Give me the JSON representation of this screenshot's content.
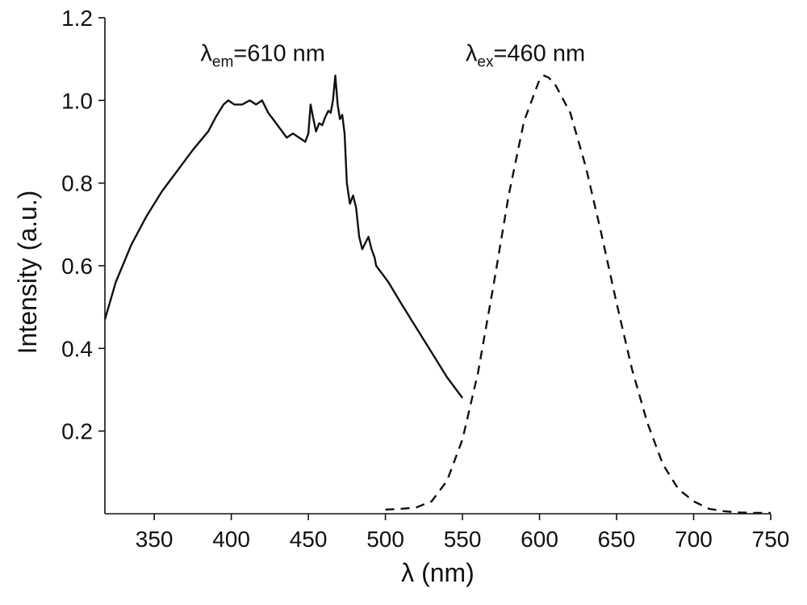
{
  "chart_data": {
    "type": "line",
    "xlabel": "λ  (nm)",
    "ylabel": "Intensity (a.u.)",
    "xlim": [
      318,
      750
    ],
    "ylim": [
      0,
      1.2
    ],
    "x_ticks": [
      350,
      400,
      450,
      500,
      550,
      600,
      650,
      700,
      750
    ],
    "y_ticks": [
      0.2,
      0.4,
      0.6,
      0.8,
      1.0,
      1.2
    ],
    "y_tick_labels": [
      "0.2",
      "0.4",
      "0.6",
      "0.8",
      "1.0",
      "1.2"
    ],
    "grid": false,
    "legend": "none",
    "annotations": [
      {
        "symbol": "λ",
        "subscript": "em",
        "text": "=610 nm",
        "x": 380,
        "y": 1.095
      },
      {
        "symbol": "λ",
        "subscript": "ex",
        "text": "=460 nm",
        "x": 552,
        "y": 1.095
      }
    ],
    "series": [
      {
        "style": "solid",
        "color": "#111111",
        "x": [
          318,
          325,
          335,
          345,
          355,
          365,
          375,
          385,
          390,
          395,
          398,
          402,
          407,
          412,
          416,
          420,
          424,
          428,
          432,
          436,
          440,
          444,
          448,
          450,
          451.5,
          453,
          455,
          457,
          459,
          461,
          463,
          464.5,
          466,
          467.5,
          469,
          470.5,
          472,
          473.5,
          475,
          477,
          479,
          481,
          483,
          485,
          487,
          489,
          491,
          493,
          494,
          496,
          498,
          502,
          510,
          520,
          530,
          540,
          550
        ],
        "y": [
          0.47,
          0.56,
          0.65,
          0.72,
          0.78,
          0.83,
          0.88,
          0.925,
          0.96,
          0.99,
          1.0,
          0.99,
          0.99,
          1.0,
          0.99,
          1.0,
          0.97,
          0.95,
          0.93,
          0.91,
          0.92,
          0.91,
          0.9,
          0.92,
          0.99,
          0.96,
          0.925,
          0.945,
          0.94,
          0.96,
          0.975,
          0.97,
          1.0,
          1.06,
          0.99,
          0.955,
          0.965,
          0.92,
          0.8,
          0.75,
          0.77,
          0.74,
          0.67,
          0.64,
          0.655,
          0.67,
          0.64,
          0.62,
          0.6,
          0.59,
          0.58,
          0.56,
          0.51,
          0.45,
          0.39,
          0.33,
          0.28
        ]
      },
      {
        "style": "dashed",
        "color": "#111111",
        "x": [
          500,
          510,
          520,
          530,
          540,
          550,
          560,
          570,
          580,
          590,
          600,
          603,
          606,
          610,
          620,
          630,
          640,
          650,
          660,
          670,
          680,
          690,
          700,
          710,
          720,
          730,
          740,
          750
        ],
        "y": [
          0.01,
          0.012,
          0.015,
          0.03,
          0.08,
          0.18,
          0.34,
          0.55,
          0.77,
          0.95,
          1.05,
          1.06,
          1.055,
          1.04,
          0.97,
          0.84,
          0.68,
          0.51,
          0.35,
          0.22,
          0.12,
          0.06,
          0.03,
          0.012,
          0.006,
          0.003,
          0.002,
          0.002
        ]
      }
    ]
  }
}
